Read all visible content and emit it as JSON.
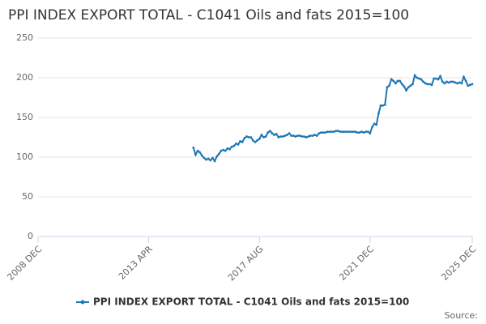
{
  "chart_data": {
    "type": "line",
    "title": "PPI INDEX EXPORT TOTAL - C1041 Oils and fats 2015=100",
    "source": "Source:",
    "categories": [
      "2008 DEC",
      null,
      null,
      null,
      null,
      null,
      null,
      null,
      null,
      null,
      null,
      null,
      null,
      null,
      null,
      null,
      null,
      null,
      null,
      null,
      null,
      null,
      null,
      null,
      null,
      null,
      null,
      null,
      null,
      null,
      null,
      null,
      null,
      null,
      null,
      null,
      null,
      null,
      null,
      null,
      null,
      null,
      null,
      null,
      null,
      null,
      null,
      null,
      null,
      null,
      null,
      null,
      "2013 APR",
      null,
      null,
      null,
      null,
      null,
      null,
      null,
      null,
      null,
      null,
      null,
      null,
      null,
      null,
      null,
      null,
      null,
      null,
      null,
      null,
      null,
      null,
      null,
      null,
      null,
      null,
      null,
      null,
      null,
      null,
      null,
      null,
      null,
      null,
      null,
      null,
      null,
      null,
      null,
      null,
      null,
      null,
      null,
      null,
      null,
      null,
      null,
      null,
      null,
      null,
      null,
      "2017 AUG",
      null,
      null,
      null,
      null,
      null,
      null,
      null,
      null,
      null,
      null,
      null,
      null,
      null,
      null,
      null,
      null,
      null,
      null,
      null,
      null,
      null,
      null,
      null,
      null,
      null,
      null,
      null,
      null,
      null,
      null,
      null,
      null,
      null,
      null,
      null,
      null,
      null,
      null,
      null,
      null,
      null,
      null,
      null,
      null,
      null,
      null,
      null,
      null,
      null,
      null,
      null,
      "2021 DEC",
      null,
      null,
      null,
      null,
      null,
      null,
      null,
      null,
      null,
      null,
      null,
      null,
      null,
      null,
      null,
      null,
      null,
      null,
      null,
      null,
      null,
      null,
      null,
      null,
      null,
      null,
      null,
      null,
      null,
      null,
      null,
      null,
      null,
      null,
      null,
      null,
      null,
      null,
      null,
      null,
      null,
      null,
      null,
      null,
      null,
      null,
      null,
      "2025 DEC"
    ],
    "series": [
      {
        "name": "PPI INDEX EXPORT TOTAL - C1041 Oils and fats 2015=100",
        "color": "#1f77b4",
        "values": [
          null,
          null,
          null,
          null,
          null,
          null,
          null,
          null,
          null,
          null,
          null,
          null,
          null,
          null,
          null,
          null,
          null,
          null,
          null,
          null,
          null,
          null,
          null,
          null,
          null,
          null,
          null,
          null,
          null,
          null,
          null,
          null,
          null,
          null,
          null,
          null,
          null,
          null,
          null,
          null,
          null,
          null,
          null,
          null,
          null,
          null,
          null,
          null,
          null,
          null,
          null,
          null,
          null,
          null,
          null,
          null,
          null,
          null,
          null,
          null,
          null,
          null,
          null,
          null,
          null,
          null,
          null,
          null,
          null,
          null,
          null,
          null,
          null,
          112,
          103,
          108,
          106,
          102,
          99,
          97,
          98,
          96,
          99,
          95,
          101,
          104,
          108,
          109,
          108,
          111,
          110,
          113,
          114,
          117,
          116,
          120,
          119,
          124,
          126,
          125,
          125,
          121,
          119,
          121,
          123,
          128,
          125,
          126,
          131,
          133,
          130,
          128,
          129,
          125,
          126,
          126,
          127,
          128,
          130,
          127,
          127,
          126,
          127,
          127,
          126,
          126,
          125,
          126,
          127,
          127,
          128,
          127,
          130,
          131,
          131,
          131,
          132,
          132,
          132,
          132,
          133,
          133,
          132,
          132,
          132,
          132,
          132,
          132,
          132,
          132,
          131,
          131,
          132,
          131,
          132,
          132,
          130,
          138,
          142,
          141,
          155,
          165,
          165,
          166,
          188,
          190,
          198,
          196,
          193,
          196,
          196,
          192,
          189,
          184,
          188,
          190,
          192,
          203,
          200,
          199,
          198,
          195,
          193,
          192,
          192,
          191,
          199,
          199,
          198,
          202,
          195,
          193,
          195,
          194,
          195,
          195,
          194,
          193,
          194,
          193,
          201,
          196,
          190,
          191,
          192
        ]
      }
    ],
    "ylim": [
      0,
      250
    ],
    "yticks": [
      0,
      50,
      100,
      150,
      200,
      250
    ],
    "grid": true
  }
}
